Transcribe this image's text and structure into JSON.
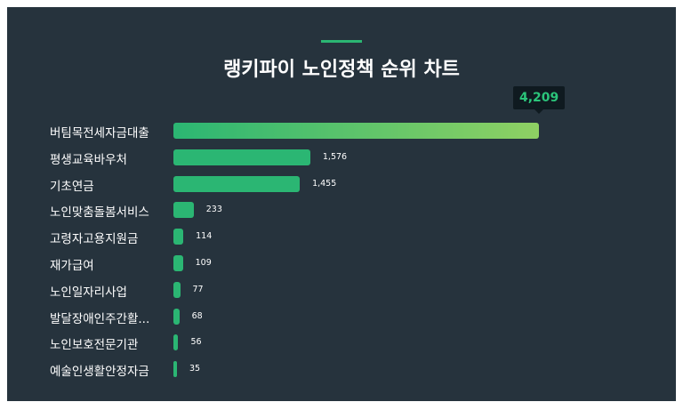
{
  "chart_data": {
    "type": "bar",
    "orientation": "horizontal",
    "title": "랭키파이 노인정책 순위 차트",
    "categories": [
      "버팀목전세자금대출",
      "평생교육바우처",
      "기초연금",
      "노인맞춤돌봄서비스",
      "고령자고용지원금",
      "재가급여",
      "노인일자리사업",
      "발달장애인주간활...",
      "노인보호전문기관",
      "예술인생활안정자금"
    ],
    "values": [
      4209,
      1576,
      1455,
      233,
      114,
      109,
      77,
      68,
      56,
      35
    ],
    "value_labels": [
      "4,209",
      "1,576",
      "1,455",
      "233",
      "114",
      "109",
      "77",
      "68",
      "56",
      "35"
    ],
    "colors": {
      "bar": "#2bb673",
      "top_bar_end": "#8fd163",
      "background": "#26333d"
    }
  }
}
